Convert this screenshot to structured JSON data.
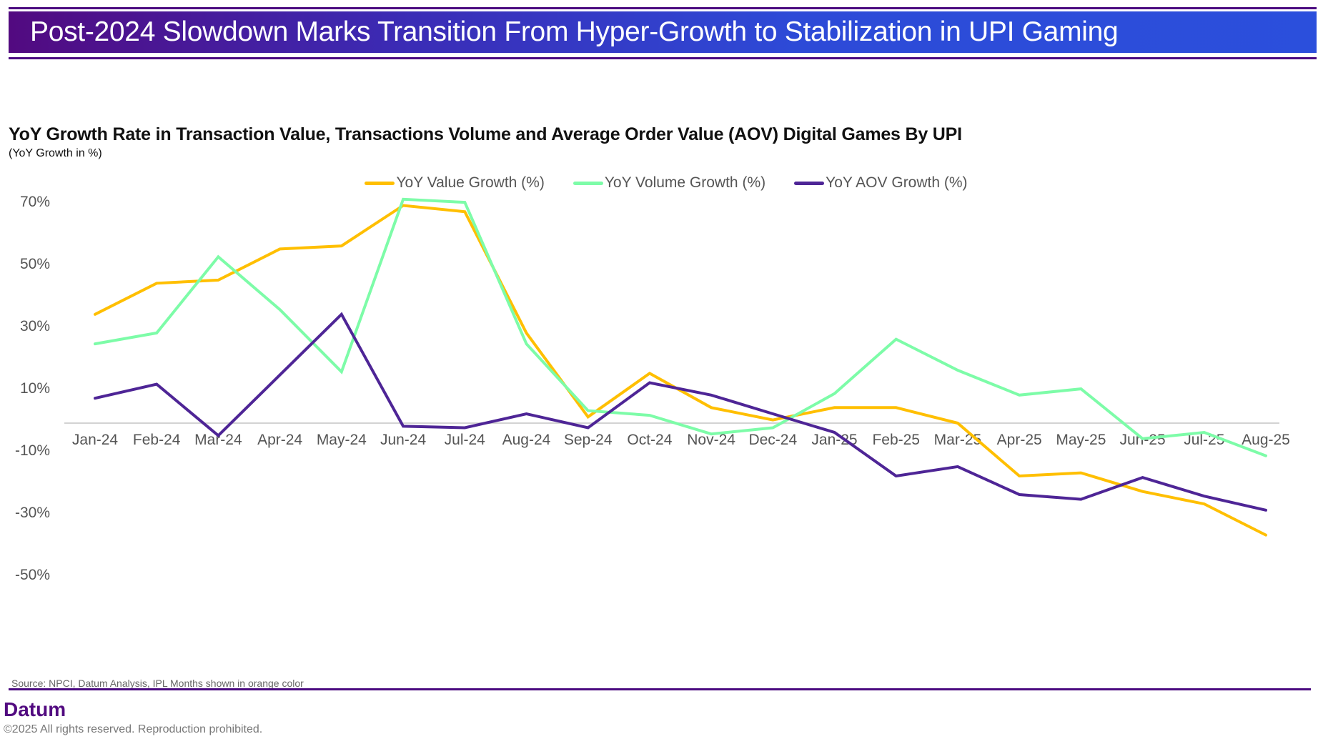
{
  "header": {
    "title": "Post-2024 Slowdown Marks Transition From Hyper-Growth to Stabilization in UPI Gaming"
  },
  "footer": {
    "source": "Source: NPCI, Datum Analysis, IPL Months shown in orange color",
    "brand": "Datum",
    "copyright": "©2025 All rights reserved. Reproduction prohibited."
  },
  "colors": {
    "value": "#FFBF00",
    "volume": "#7DFCA8",
    "aov": "#4E2596",
    "brand": "#520A80",
    "grid_zero": "#D3D3D3",
    "tick_text": "#555555"
  },
  "chart_data": {
    "type": "line",
    "title": "YoY Growth Rate in Transaction Value, Transactions Volume and Average Order Value (AOV) Digital Games By UPI",
    "subtitle": "(YoY Growth in %)",
    "xlabel": "",
    "ylabel": "",
    "categories": [
      "Jan-24",
      "Feb-24",
      "Mar-24",
      "Apr-24",
      "May-24",
      "Jun-24",
      "Jul-24",
      "Aug-24",
      "Sep-24",
      "Oct-24",
      "Nov-24",
      "Dec-24",
      "Jan-25",
      "Feb-25",
      "Mar-25",
      "Apr-25",
      "May-25",
      "Jun-25",
      "Jul-25",
      "Aug-25"
    ],
    "y_ticks": [
      70,
      50,
      30,
      10,
      -10,
      -30,
      -50
    ],
    "y_tick_labels": [
      "70%",
      "50%",
      "30%",
      "10%",
      "-10%",
      "-30%",
      "-50%"
    ],
    "ylim": [
      -50,
      70
    ],
    "grid": false,
    "legend_position": "top-center",
    "series": [
      {
        "name": "YoY Value Growth (%)",
        "key": "value",
        "values": [
          35,
          45,
          46,
          56,
          57,
          70,
          68,
          29,
          2,
          16,
          5,
          1,
          5,
          5,
          0,
          -17,
          -16,
          -22,
          -26,
          -36
        ]
      },
      {
        "name": "YoY Volume Growth (%)",
        "key": "volume",
        "values": [
          25.5,
          29,
          53.5,
          36.5,
          16.5,
          72,
          71,
          25.5,
          4,
          2.5,
          -3.5,
          -1.5,
          9.5,
          27,
          17,
          9,
          11,
          -5,
          -3,
          -10.5
        ]
      },
      {
        "name": "YoY AOV Growth (%)",
        "key": "aov",
        "values": [
          8,
          12.5,
          -4,
          15.5,
          35,
          -1,
          -1.5,
          3,
          -1.5,
          13,
          9,
          3,
          -3,
          -17,
          -14,
          -23,
          -24.5,
          -17.5,
          -23.5,
          -28
        ]
      }
    ]
  }
}
